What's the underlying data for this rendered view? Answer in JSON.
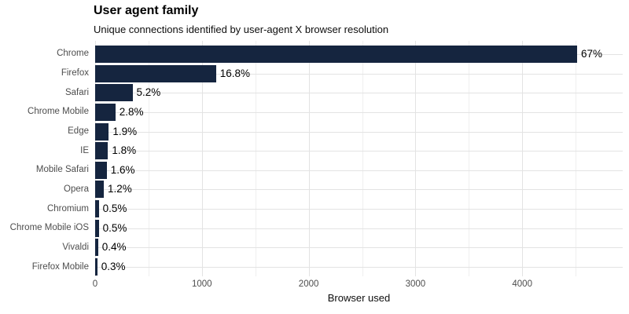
{
  "chart": {
    "title": "User agent family",
    "subtitle": "Unique connections identified by user-agent X browser resolution",
    "x_axis_title": "Browser used"
  },
  "chart_data": {
    "type": "bar",
    "orientation": "horizontal",
    "title": "User agent family",
    "subtitle": "Unique connections identified by user-agent X browser resolution",
    "xlabel": "Browser used",
    "ylabel": "",
    "categories": [
      "Chrome",
      "Firefox",
      "Safari",
      "Chrome Mobile",
      "Edge",
      "IE",
      "Mobile Safari",
      "Opera",
      "Chromium",
      "Chrome Mobile iOS",
      "Vivaldi",
      "Firefox Mobile"
    ],
    "values": [
      4514,
      1132,
      350,
      189,
      128,
      121,
      108,
      81,
      34,
      34,
      27,
      20
    ],
    "value_labels": [
      "67%",
      "16.8%",
      "5.2%",
      "2.8%",
      "1.9%",
      "1.8%",
      "1.6%",
      "1.2%",
      "0.5%",
      "0.5%",
      "0.4%",
      "0.3%"
    ],
    "xlim": [
      0,
      4941
    ],
    "x_major_ticks": [
      0,
      1000,
      2000,
      3000,
      4000
    ],
    "x_major_tick_labels": [
      "0",
      "1000",
      "2000",
      "3000",
      "4000"
    ],
    "x_minor_ticks": [
      500,
      1500,
      2500,
      3500,
      4500
    ],
    "grid": true,
    "legend": "none",
    "colors": {
      "bar": "#15253F",
      "grid_major": "#e3e3e3",
      "grid_minor": "#efefef",
      "axis_text": "#4d4d4d",
      "value_label": "#000000",
      "title_text": "#000000"
    }
  }
}
